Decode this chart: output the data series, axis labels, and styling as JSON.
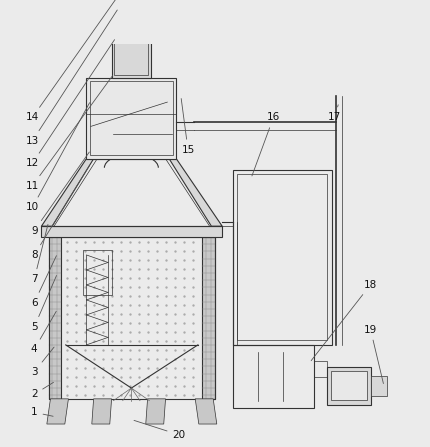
{
  "bg_color": "#ebebeb",
  "line_color": "#555555",
  "dark_line": "#333333",
  "fill_light": "#e8e8e8",
  "fill_wall": "#c8c8c8",
  "fill_mid": "#d8d8d8"
}
